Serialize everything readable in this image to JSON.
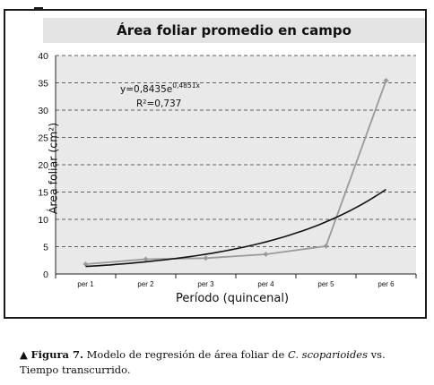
{
  "chart_data": {
    "type": "line",
    "title": "Área foliar promedio en campo",
    "xlabel": "Período (quincenal)",
    "ylabel": "Área foliar (cm²)",
    "categories": [
      "per 1",
      "per 2",
      "per 3",
      "per 4",
      "per 5",
      "per 6"
    ],
    "ylim": [
      0,
      40
    ],
    "yticks": [
      0,
      5,
      10,
      15,
      20,
      25,
      30,
      35,
      40
    ],
    "grid": "horizontal dashed",
    "series": [
      {
        "values": [
          1.8,
          2.7,
          2.9,
          3.6,
          5.1,
          35.4
        ],
        "color": "#9a9a9a",
        "marker": "diamond"
      }
    ],
    "trendline": {
      "type": "exponential",
      "coef": 0.8435,
      "rate": 0.4851,
      "color": "#111111",
      "equation_prefix": "y=0,8435e",
      "equation_exponent": "0,4851x",
      "r_squared_text": "R²=0,737"
    }
  },
  "caption": {
    "marker": "▲",
    "figure_label": "Figura 7.",
    "text_before": " Modelo de regresión de área foliar de ",
    "species": "C. scoparioides",
    "text_after": " vs. Tiempo transcurrido."
  }
}
